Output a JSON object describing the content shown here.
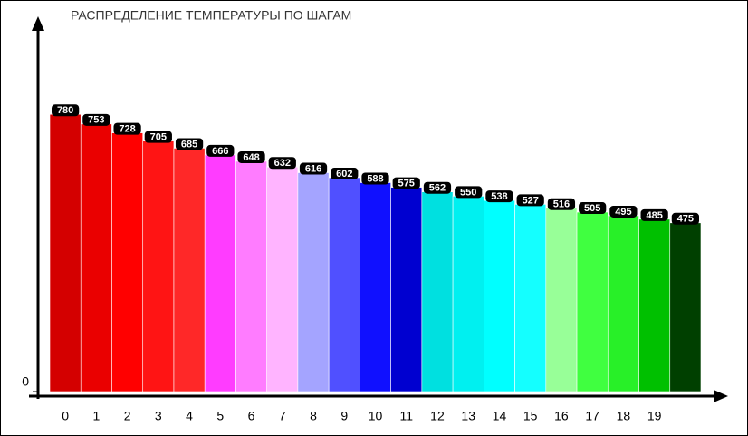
{
  "chart_data": {
    "type": "bar",
    "title": "РАСПРЕДЕЛЕНИЕ ТЕМПЕРАТУРЫ ПО ШАГАМ",
    "categories": [
      "0",
      "1",
      "2",
      "3",
      "4",
      "5",
      "6",
      "7",
      "8",
      "9",
      "10",
      "11",
      "12",
      "13",
      "14",
      "15",
      "16",
      "17",
      "18",
      "19",
      null
    ],
    "values": [
      780,
      753,
      728,
      705,
      685,
      666,
      648,
      632,
      616,
      602,
      588,
      575,
      562,
      550,
      538,
      527,
      516,
      505,
      495,
      485,
      475
    ],
    "colors": [
      "#d40000",
      "#ea0000",
      "#ff0000",
      "#ff1414",
      "#ff2828",
      "#ff3cff",
      "#ff7cff",
      "#ffb4ff",
      "#a4a4ff",
      "#5050ff",
      "#1010ff",
      "#0000d0",
      "#00e0e0",
      "#00f0f0",
      "#00ffff",
      "#14ffff",
      "#98ff98",
      "#40ff40",
      "#28f028",
      "#00c000",
      "#004000"
    ],
    "ylim": [
      0,
      1000
    ],
    "yticks": [
      0
    ]
  }
}
